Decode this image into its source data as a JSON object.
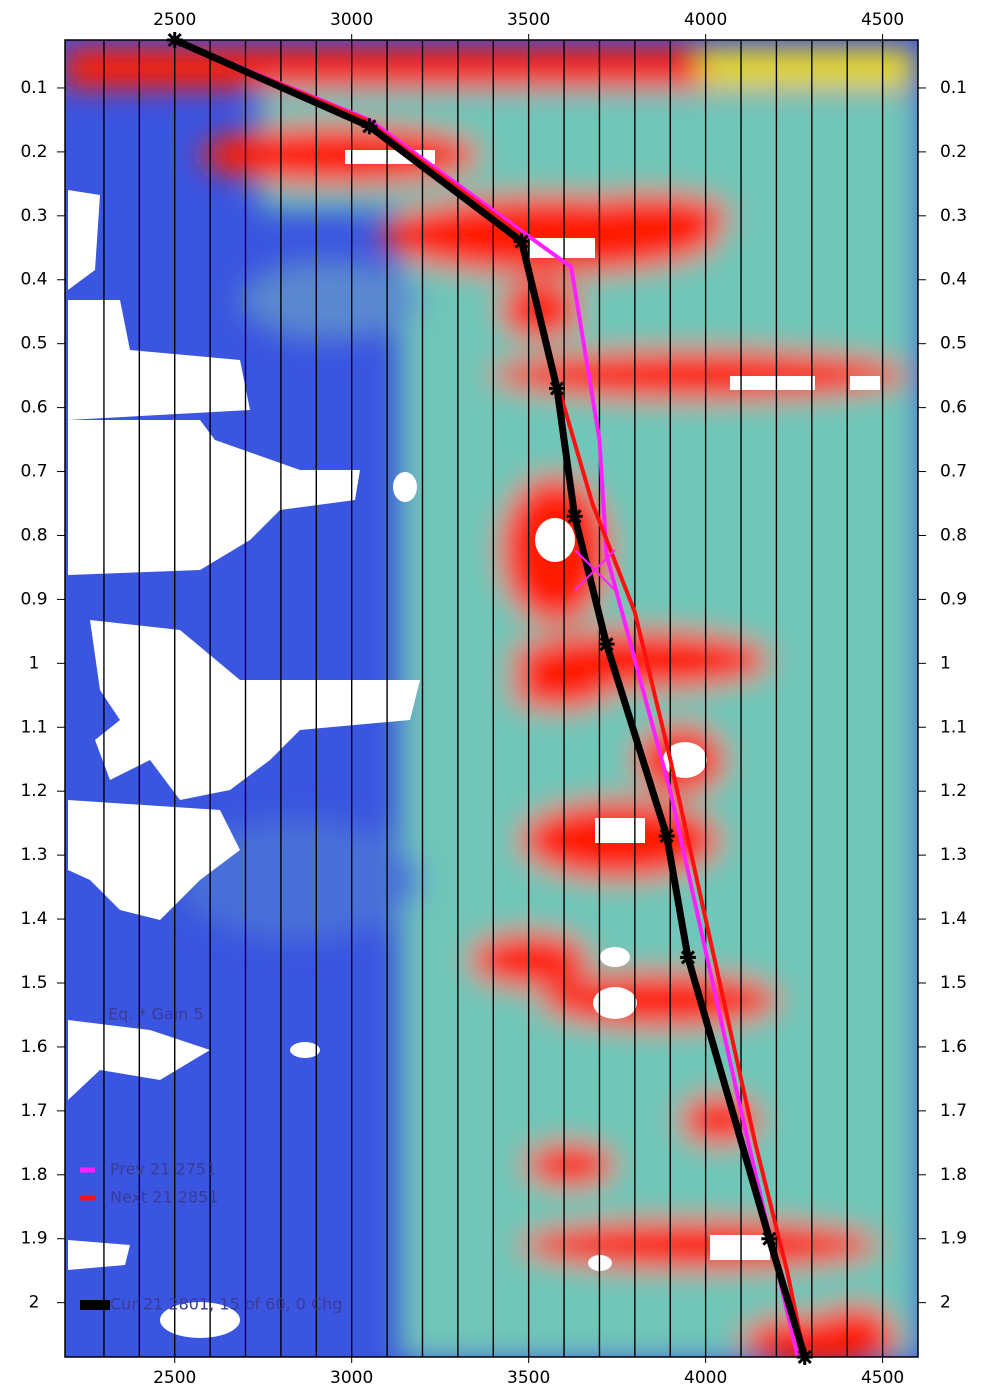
{
  "chart_data": {
    "type": "line",
    "annotation": "Eq. * Gain 5",
    "xlim": [
      2190,
      4600
    ],
    "xticks": [
      2500,
      3000,
      3500,
      4000,
      4500
    ],
    "ylim": [
      0.025,
      2.085
    ],
    "y_reversed": true,
    "yticks": [
      0.1,
      0.2,
      0.3,
      0.4,
      0.5,
      0.6,
      0.7,
      0.8,
      0.9,
      1,
      1.1,
      1.2,
      1.3,
      1.4,
      1.5,
      1.6,
      1.7,
      1.8,
      1.9,
      2
    ],
    "xgrid": [
      2300,
      2400,
      2500,
      2600,
      2700,
      2800,
      2900,
      3000,
      3100,
      3200,
      3300,
      3400,
      3500,
      3600,
      3700,
      3800,
      3900,
      4000,
      4100,
      4200,
      4300,
      4400,
      4500
    ],
    "series": [
      {
        "name": "Prev 21 2751",
        "color": "#ff20ff",
        "width": 4,
        "x": [
          2500,
          3050,
          3470,
          3620,
          3700,
          3720,
          3900,
          4100,
          4260
        ],
        "values": [
          0.025,
          0.15,
          0.32,
          0.38,
          0.65,
          0.83,
          1.2,
          1.7,
          2.085
        ]
      },
      {
        "name": "Next 21 2851",
        "color": "#ff1010",
        "width": 4,
        "x": [
          2500,
          3040,
          3480,
          3580,
          3680,
          3800,
          3900,
          4000,
          4140,
          4230,
          4280
        ],
        "values": [
          0.025,
          0.15,
          0.33,
          0.56,
          0.75,
          0.92,
          1.15,
          1.4,
          1.75,
          1.95,
          2.085
        ]
      },
      {
        "name": "Cur 21 2801, 15 of 60, 0 Chg",
        "color": "#000000",
        "width": 7,
        "markers": true,
        "x": [
          2500,
          3050,
          3480,
          3580,
          3630,
          3720,
          3890,
          3950,
          4180,
          4280
        ],
        "values": [
          0.025,
          0.16,
          0.34,
          0.57,
          0.77,
          0.97,
          1.27,
          1.46,
          1.9,
          2.085
        ]
      }
    ]
  }
}
